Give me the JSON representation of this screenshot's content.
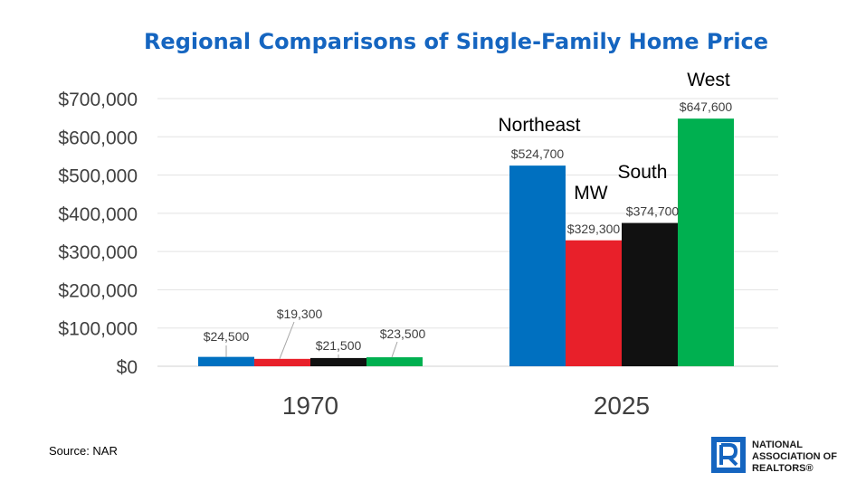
{
  "chart_data": {
    "type": "bar",
    "title": "Regional Comparisons of Single-Family Home Price",
    "categories": [
      "1970",
      "2025"
    ],
    "series": [
      {
        "name": "Northeast",
        "color": "#0070c0",
        "values": [
          24500,
          524700
        ],
        "data_labels": [
          "$24,500",
          "$524,700"
        ]
      },
      {
        "name": "MW",
        "color": "#e8202a",
        "values": [
          19300,
          329300
        ],
        "data_labels": [
          "$19,300",
          "$329,300"
        ]
      },
      {
        "name": "South",
        "color": "#111111",
        "values": [
          21500,
          374700
        ],
        "data_labels": [
          "$21,500",
          "$374,700"
        ]
      },
      {
        "name": "West",
        "color": "#00b050",
        "values": [
          23500,
          647600
        ],
        "data_labels": [
          "$23,500",
          "$647,600"
        ]
      }
    ],
    "ylim": [
      0,
      700000
    ],
    "yticks": [
      {
        "value": 0,
        "label": "$0"
      },
      {
        "value": 100000,
        "label": "$100,000"
      },
      {
        "value": 200000,
        "label": "$200,000"
      },
      {
        "value": 300000,
        "label": "$300,000"
      },
      {
        "value": 400000,
        "label": "$400,000"
      },
      {
        "value": 500000,
        "label": "$500,000"
      },
      {
        "value": 600000,
        "label": "$600,000"
      },
      {
        "value": 700000,
        "label": "$700,000"
      }
    ],
    "grid": true,
    "legend": "none"
  },
  "source": "Source: NAR",
  "logo": {
    "line1": "NATIONAL",
    "line2": "ASSOCIATION OF",
    "line3": "REALTORS®",
    "color": "#1565c0"
  }
}
